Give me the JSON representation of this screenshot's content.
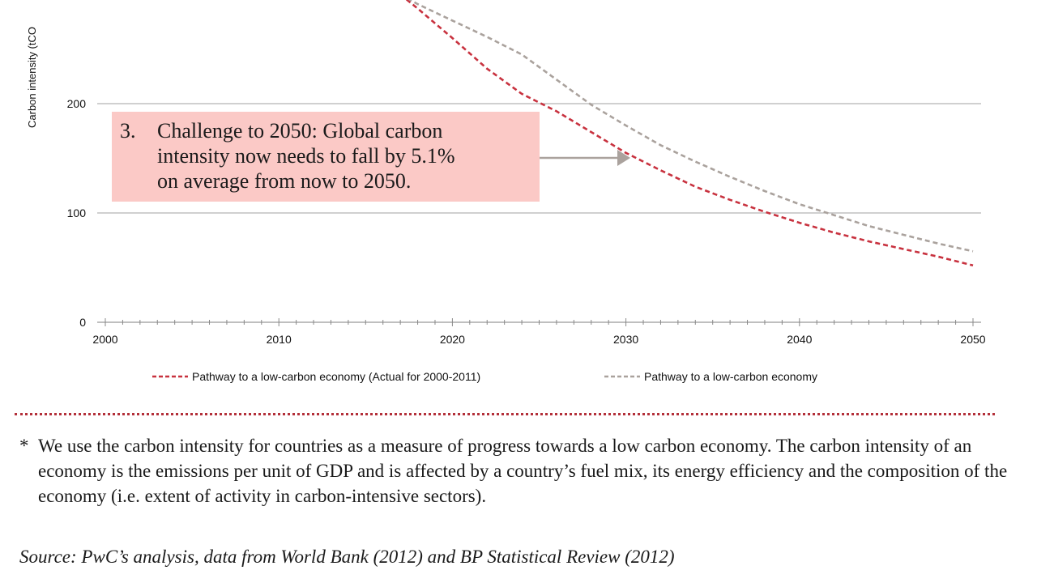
{
  "chart_data": {
    "type": "line",
    "ylabel": "Carbon intensity  (tCO",
    "xlim": [
      2000,
      2050
    ],
    "ylim": [
      0,
      300
    ],
    "x_ticks": [
      2000,
      2010,
      2020,
      2030,
      2040,
      2050
    ],
    "y_ticks": [
      0,
      100,
      200
    ],
    "grid": true,
    "legend_position": "bottom",
    "series": [
      {
        "name": "Pathway to a low-carbon economy (Actual for 2000-2011)",
        "color": "#c8323f",
        "style": "dashed",
        "points": [
          [
            2017,
            300
          ],
          [
            2018,
            287
          ],
          [
            2020,
            260
          ],
          [
            2022,
            232
          ],
          [
            2024,
            209
          ],
          [
            2026,
            193
          ],
          [
            2028,
            174
          ],
          [
            2030,
            155
          ],
          [
            2032,
            139
          ],
          [
            2034,
            124
          ],
          [
            2036,
            112
          ],
          [
            2038,
            101
          ],
          [
            2040,
            91
          ],
          [
            2042,
            82
          ],
          [
            2044,
            74
          ],
          [
            2046,
            67
          ],
          [
            2048,
            60
          ],
          [
            2050,
            52
          ]
        ]
      },
      {
        "name": "Pathway to a low-carbon economy",
        "color": "#aaa29d",
        "style": "dashed",
        "points": [
          [
            2017,
            300
          ],
          [
            2018,
            291
          ],
          [
            2020,
            276
          ],
          [
            2022,
            261
          ],
          [
            2024,
            245
          ],
          [
            2026,
            222
          ],
          [
            2028,
            199
          ],
          [
            2030,
            180
          ],
          [
            2032,
            162
          ],
          [
            2034,
            147
          ],
          [
            2036,
            133
          ],
          [
            2038,
            120
          ],
          [
            2040,
            108
          ],
          [
            2042,
            98
          ],
          [
            2044,
            88
          ],
          [
            2046,
            80
          ],
          [
            2048,
            72
          ],
          [
            2050,
            65
          ]
        ]
      }
    ],
    "annotation": {
      "number": "3.",
      "lines": [
        "Challenge to 2050: Global carbon",
        "intensity now needs to fall by 5.1%",
        "on average from now to 2050."
      ],
      "bg_color": "#fbc9c6",
      "arrow_color": "#aaa29d"
    }
  },
  "footnote": {
    "star": "*",
    "text": "We use the carbon intensity for countries as a measure of progress towards a low carbon economy. The carbon intensity of an economy is the emissions per unit of GDP and is affected by a country’s fuel mix, its energy efficiency and the composition of the economy (i.e. extent of activity in carbon-intensive sectors)."
  },
  "source": "Source: PwC’s analysis, data from World Bank (2012) and BP Statistical Review (2012)",
  "colors": {
    "divider": "#b3303a",
    "grid": "#b5b5b5"
  }
}
